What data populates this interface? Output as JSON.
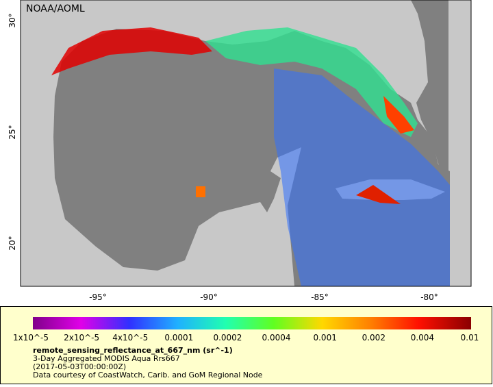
{
  "map": {
    "watermark": "NOAA/AOML",
    "lat_labels": [
      "30°",
      "25°",
      "20°"
    ],
    "lon_labels": [
      "-95°",
      "-90°",
      "-85°",
      "-80°"
    ]
  },
  "colorbar": {
    "tick_labels": [
      "1x10^-5",
      "2x10^-5",
      "4x10^-5",
      "0.0001",
      "0.0002",
      "0.0004",
      "0.001",
      "0.002",
      "0.004",
      "0.01"
    ]
  },
  "caption": {
    "variable": "remote_sensing_reflectance_at_667_nm (sr^-1)",
    "lines": [
      "3-Day Aggregated MODIS Aqua Rrs667",
      "(2017-05-03T00:00:00Z)",
      "Data courtesy of CoastWatch, Carib. and GoM Regional Node"
    ]
  }
}
